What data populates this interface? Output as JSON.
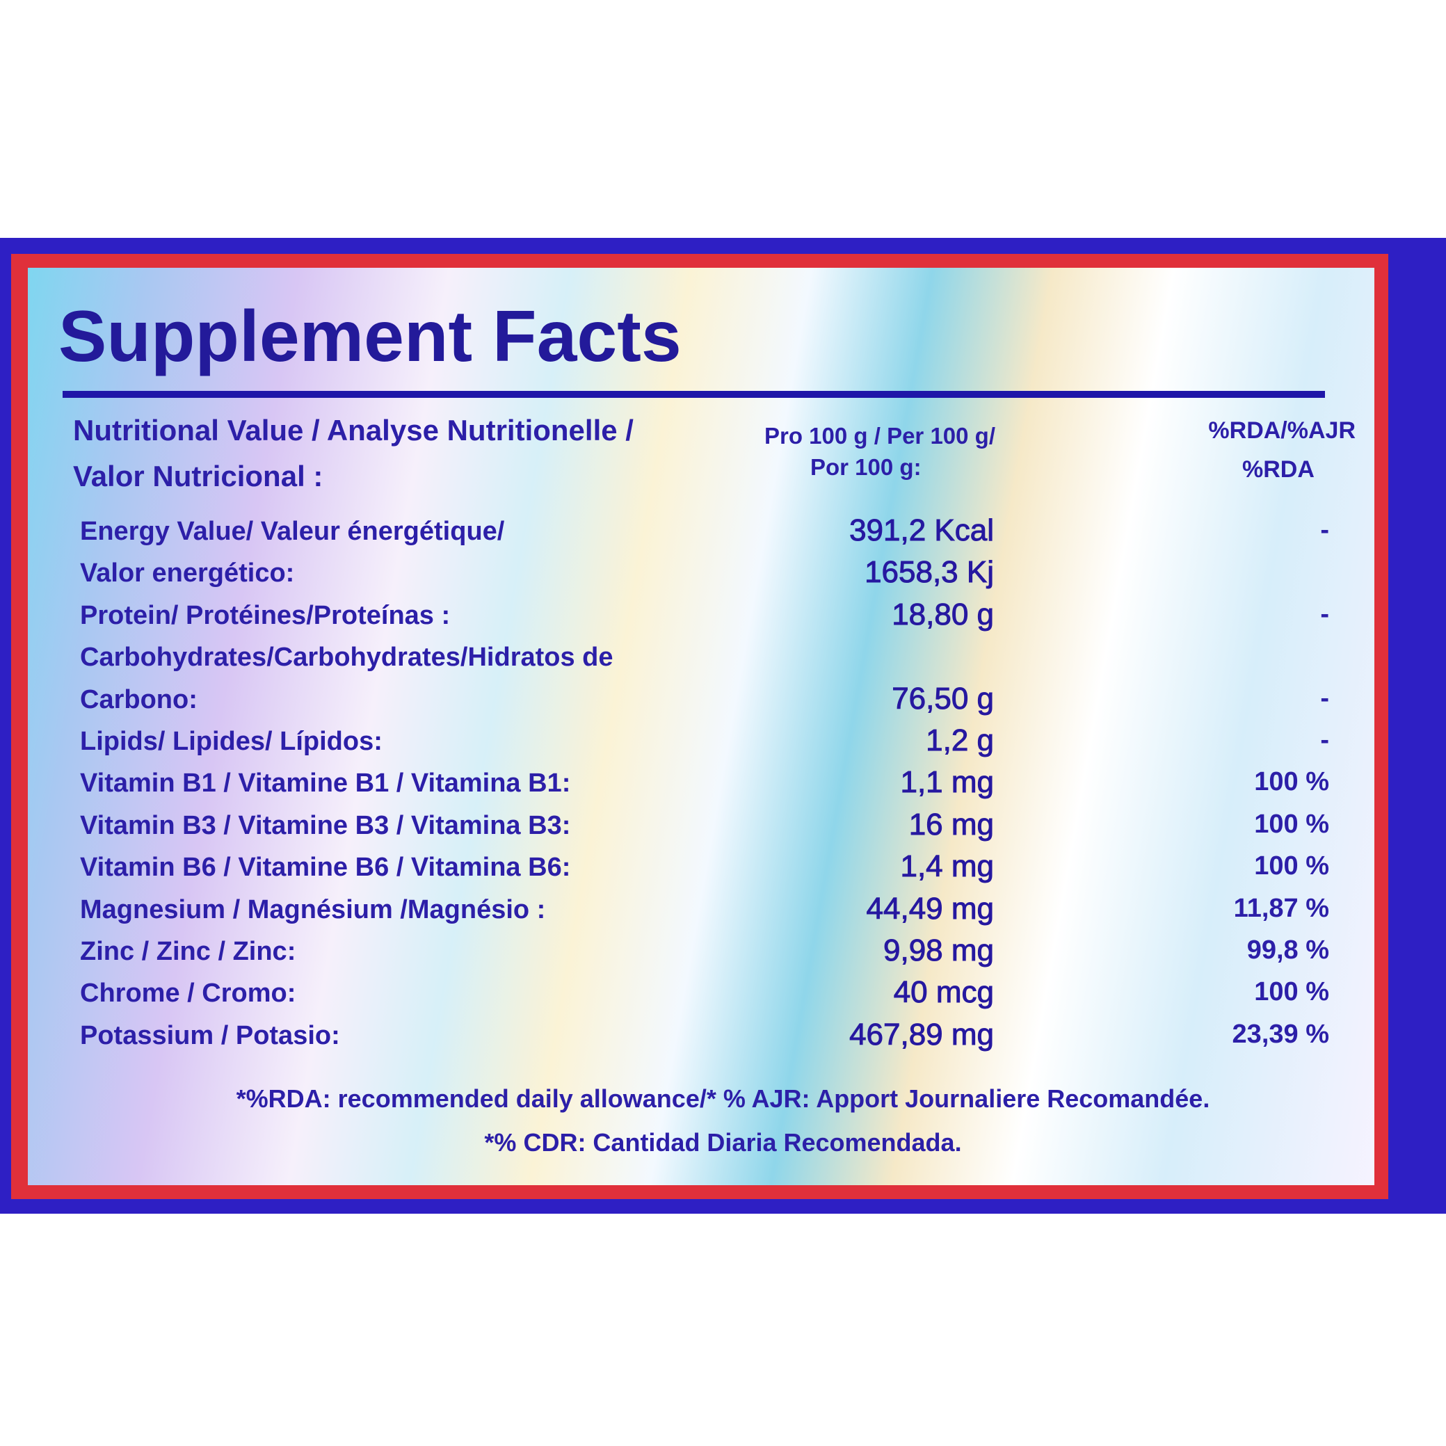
{
  "title": "Supplement Facts",
  "header": {
    "nutrition_line1": "Nutritional Value / Analyse Nutritionelle /",
    "nutrition_line2": "Valor Nutricional :",
    "per_line1": "Pro 100 g / Per 100 g/",
    "per_line2": "Por 100 g:",
    "rda_line1": "%RDA/%AJR",
    "rda_line2": "%RDA"
  },
  "rows": [
    {
      "label": "Energy Value/ Valeur énergétique/",
      "value": "391,2 Kcal",
      "rda": "-"
    },
    {
      "label": "Valor energético:",
      "value": "1658,3 Kj"
    },
    {
      "label": "Protein/ Protéines/Proteínas :",
      "value": "18,80 g",
      "rda": "-"
    },
    {
      "label": "Carbohydrates/Carbohydrates/Hidratos de"
    },
    {
      "label": "Carbono:",
      "value": "76,50 g",
      "rda": "-"
    },
    {
      "label": "Lipids/ Lipides/ Lípidos:",
      "value": "1,2 g",
      "rda": "-"
    },
    {
      "label": "Vitamin B1 / Vitamine B1 / Vitamina B1:",
      "value": "1,1 mg",
      "rda": "100 %"
    },
    {
      "label": "Vitamin B3 / Vitamine B3 / Vitamina B3:",
      "value": "16 mg",
      "rda": "100 %"
    },
    {
      "label": "Vitamin B6 / Vitamine B6 / Vitamina B6:",
      "value": "1,4 mg",
      "rda": "100 %"
    },
    {
      "label": "Magnesium / Magnésium /Magnésio :",
      "value": "44,49 mg",
      "rda": "11,87 %"
    },
    {
      "label": "Zinc / Zinc / Zinc:",
      "value": "9,98 mg",
      "rda": "99,8 %"
    },
    {
      "label": "Chrome / Cromo:",
      "value": "40 mcg",
      "rda": "100 %"
    },
    {
      "label": "Potassium / Potasio:",
      "value": "467,89 mg",
      "rda": "23,39 %"
    }
  ],
  "footer": {
    "line1": "*%RDA: recommended daily allowance/* % AJR: Apport Journaliere Recomandée.",
    "line2": "*% CDR: Cantidad Diaria Recomendada."
  }
}
